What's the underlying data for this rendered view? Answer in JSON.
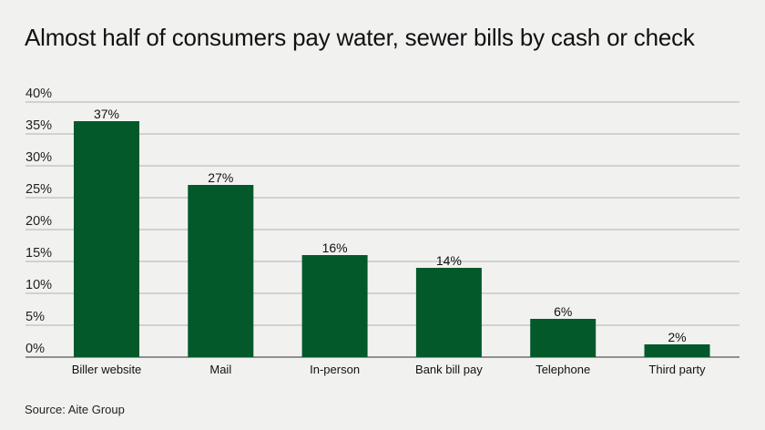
{
  "title": "Almost half of consumers pay water, sewer bills by cash or check",
  "source": "Source: Aite Group",
  "colors": {
    "bar": "#03592a",
    "grid": "#9a9a9a",
    "background": "#f1f2f0"
  },
  "chart_data": {
    "type": "bar",
    "categories": [
      "Biller website",
      "Mail",
      "In-person",
      "Bank bill pay",
      "Telephone",
      "Third party"
    ],
    "values": [
      37,
      27,
      16,
      14,
      6,
      2
    ],
    "value_labels": [
      "37%",
      "27%",
      "16%",
      "14%",
      "6%",
      "2%"
    ],
    "ylim": [
      0,
      40
    ],
    "yticks": [
      0,
      5,
      10,
      15,
      20,
      25,
      30,
      35,
      40
    ],
    "ytick_labels": [
      "0%",
      "5%",
      "10%",
      "15%",
      "20%",
      "25%",
      "30%",
      "35%",
      "40%"
    ],
    "title": "Almost half of consumers pay water, sewer bills by cash or check",
    "xlabel": "",
    "ylabel": "",
    "grid": true
  }
}
